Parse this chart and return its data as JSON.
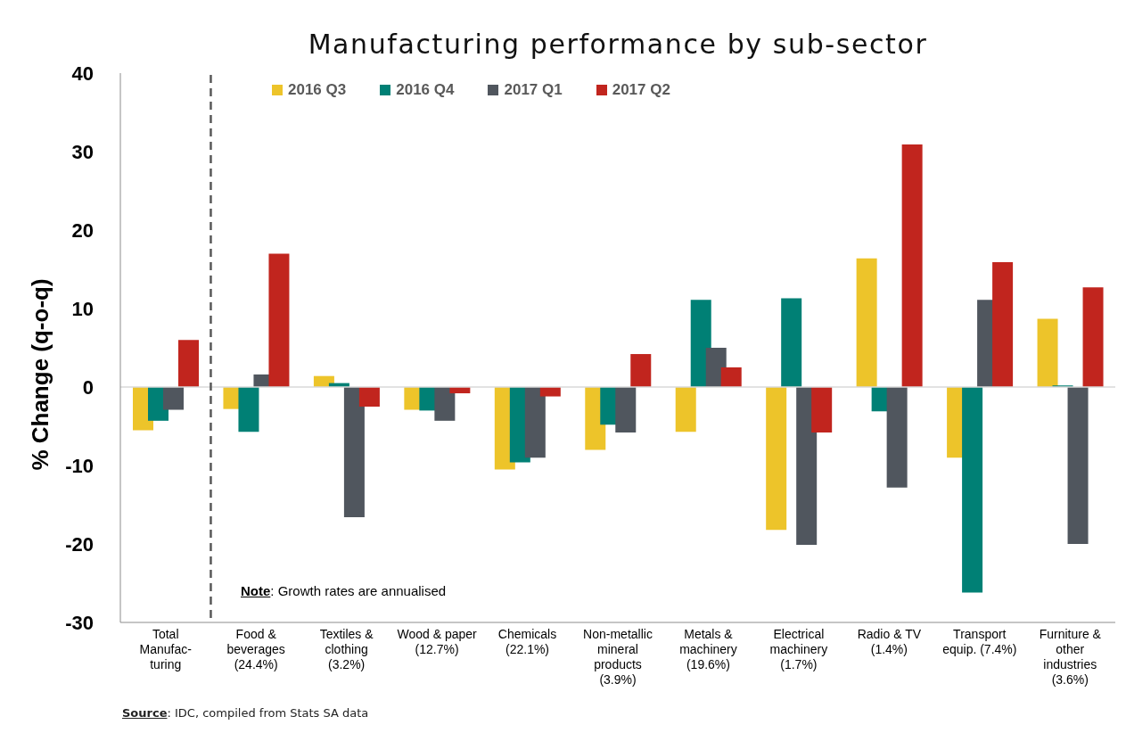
{
  "chart_data": {
    "type": "bar",
    "title": "Manufacturing performance by sub-sector",
    "ylabel": "% Change (q-o-q)",
    "categories": [
      "Total Manufac-turing",
      "Food & beverages (24.4%)",
      "Textiles & clothing (3.2%)",
      "Wood & paper (12.7%)",
      "Chemicals (22.1%)",
      "Non-metallic mineral products (3.9%)",
      "Metals & machinery (19.6%)",
      "Electrical machinery (1.7%)",
      "Radio & TV (1.4%)",
      "Transport equip. (7.4%)",
      "Furniture & other industries (3.6%)"
    ],
    "series": [
      {
        "name": "2016 Q3",
        "color": "#edc42a",
        "values": [
          -5.5,
          -2.8,
          1.4,
          -2.9,
          -10.5,
          -8.0,
          -5.7,
          -18.2,
          16.4,
          -9.0,
          8.7
        ]
      },
      {
        "name": "2016 Q4",
        "color": "#008075",
        "values": [
          -4.3,
          -5.7,
          0.5,
          -3.0,
          -9.6,
          -4.8,
          11.1,
          11.3,
          -3.1,
          -26.2,
          0.2
        ]
      },
      {
        "name": "2017 Q1",
        "color": "#50565e",
        "values": [
          -2.9,
          1.6,
          -16.6,
          -4.3,
          -9.0,
          -5.8,
          5.0,
          -20.1,
          -12.8,
          11.1,
          -20.0
        ]
      },
      {
        "name": "2017 Q2",
        "color": "#c1251e",
        "values": [
          6.0,
          17.0,
          -2.5,
          -0.8,
          -1.2,
          4.2,
          2.5,
          -5.8,
          30.9,
          15.9,
          12.7
        ]
      }
    ],
    "ylim": [
      -30,
      40
    ],
    "yticks": [
      -30,
      -20,
      -10,
      0,
      10,
      20,
      30,
      40
    ],
    "legend": "top",
    "ref_lines": [
      {
        "axis": "y",
        "value": 0,
        "color": "#d9d9d9"
      }
    ],
    "annotations": [
      "Note: Growth rates are annualised",
      "Source: IDC, compiled from Stats SA data"
    ]
  }
}
